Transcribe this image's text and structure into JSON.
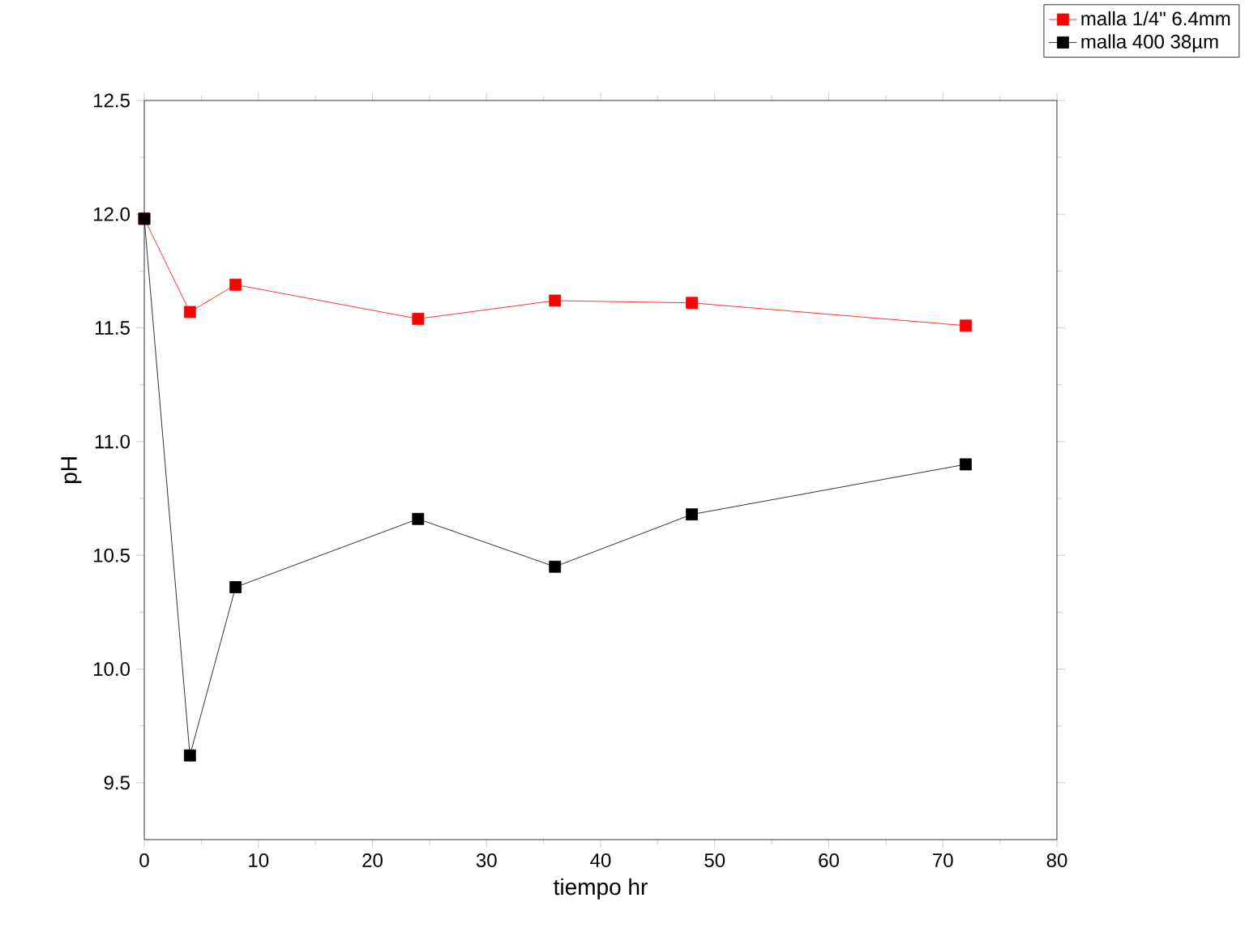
{
  "chart_data": {
    "type": "line",
    "xlabel": "tiempo hr",
    "ylabel": "pH",
    "x": [
      0,
      4,
      8,
      24,
      36,
      48,
      72
    ],
    "series": [
      {
        "name": "malla 1/4\" 6.4mm",
        "color": "#ff0000",
        "values": [
          11.98,
          11.57,
          11.69,
          11.54,
          11.62,
          11.61,
          11.51
        ]
      },
      {
        "name": "malla 400 38µm",
        "color": "#000000",
        "values": [
          11.98,
          9.62,
          10.36,
          10.66,
          10.45,
          10.68,
          10.9
        ]
      }
    ],
    "xlim": [
      0,
      80
    ],
    "ylim": [
      9.25,
      12.5
    ],
    "xticks": [
      0,
      10,
      20,
      30,
      40,
      50,
      60,
      70,
      80
    ],
    "yticks": [
      {
        "value": 9.5,
        "label": "9.5"
      },
      {
        "value": 10,
        "label": "10.0"
      },
      {
        "value": 10.5,
        "label": "10.5"
      },
      {
        "value": 11,
        "label": "11.0"
      },
      {
        "value": 11.5,
        "label": "11.5"
      },
      {
        "value": 12,
        "label": "12.0"
      },
      {
        "value": 12.5,
        "label": "12.5"
      }
    ],
    "marker": "square",
    "line_style": "solid",
    "legend": "top right",
    "grid": false
  }
}
